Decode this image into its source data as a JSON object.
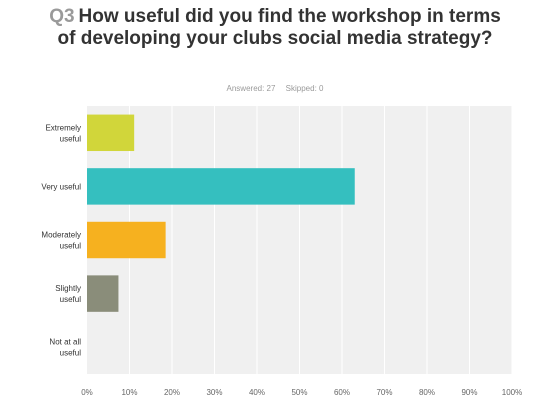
{
  "question": {
    "number": "Q3",
    "text": "How useful did you find the workshop in terms of developing your clubs social media strategy?"
  },
  "stats": {
    "answered": "Answered: 27",
    "skipped": "Skipped: 0"
  },
  "chart_data": {
    "type": "bar",
    "orientation": "horizontal",
    "categories": [
      "Extremely useful",
      "Very useful",
      "Moderately useful",
      "Slightly useful",
      "Not at all useful"
    ],
    "values": [
      11.1,
      63.0,
      18.5,
      7.4,
      0
    ],
    "colors": [
      "#d1d63a",
      "#35bfbf",
      "#f6b11f",
      "#8a8d7a",
      "#cccccc"
    ],
    "xlim": [
      0,
      100
    ],
    "x_ticks": [
      "0%",
      "10%",
      "20%",
      "30%",
      "40%",
      "50%",
      "60%",
      "70%",
      "80%",
      "90%",
      "100%"
    ],
    "grid": true,
    "plot_background": "#f0f0f0"
  }
}
